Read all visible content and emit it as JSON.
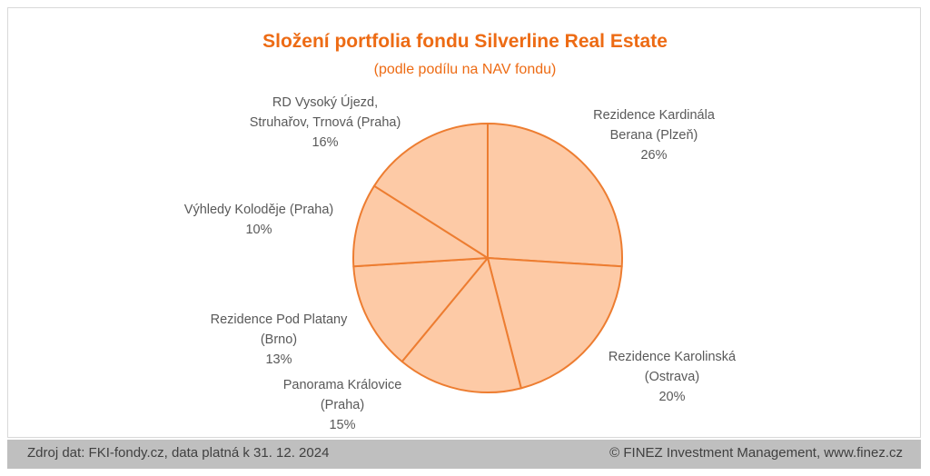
{
  "chart_data": {
    "type": "pie",
    "title": "Složení portfolia fondu Silverline Real Estate",
    "subtitle": "(podle podílu na NAV fondu)",
    "slices": [
      {
        "line1": "Rezidence Kardinála",
        "line2": "Berana (Plzeň)",
        "pct_label": "26%",
        "value": 26
      },
      {
        "line1": "Rezidence Karolinská",
        "line2": "(Ostrava)",
        "pct_label": "20%",
        "value": 20
      },
      {
        "line1": "Panorama Královice",
        "line2": "(Praha)",
        "pct_label": "15%",
        "value": 15
      },
      {
        "line1": "Rezidence Pod Platany",
        "line2": "(Brno)",
        "pct_label": "13%",
        "value": 13
      },
      {
        "line1": "Výhledy Koloděje (Praha)",
        "line2": "",
        "pct_label": "10%",
        "value": 10
      },
      {
        "line1": "RD Vysoký Újezd,",
        "line2": "Struhařov, Trnová (Praha)",
        "pct_label": "16%",
        "value": 16
      }
    ],
    "colors": {
      "fill": "#fdcaa6",
      "stroke": "#ed7d31",
      "text": "#595959",
      "title": "#ed6b14"
    }
  },
  "footer": {
    "source": "Zdroj dat: FKI-fondy.cz, data platná k 31. 12. 2024",
    "copyright": "© FINEZ Investment Management, www.finez.cz"
  }
}
